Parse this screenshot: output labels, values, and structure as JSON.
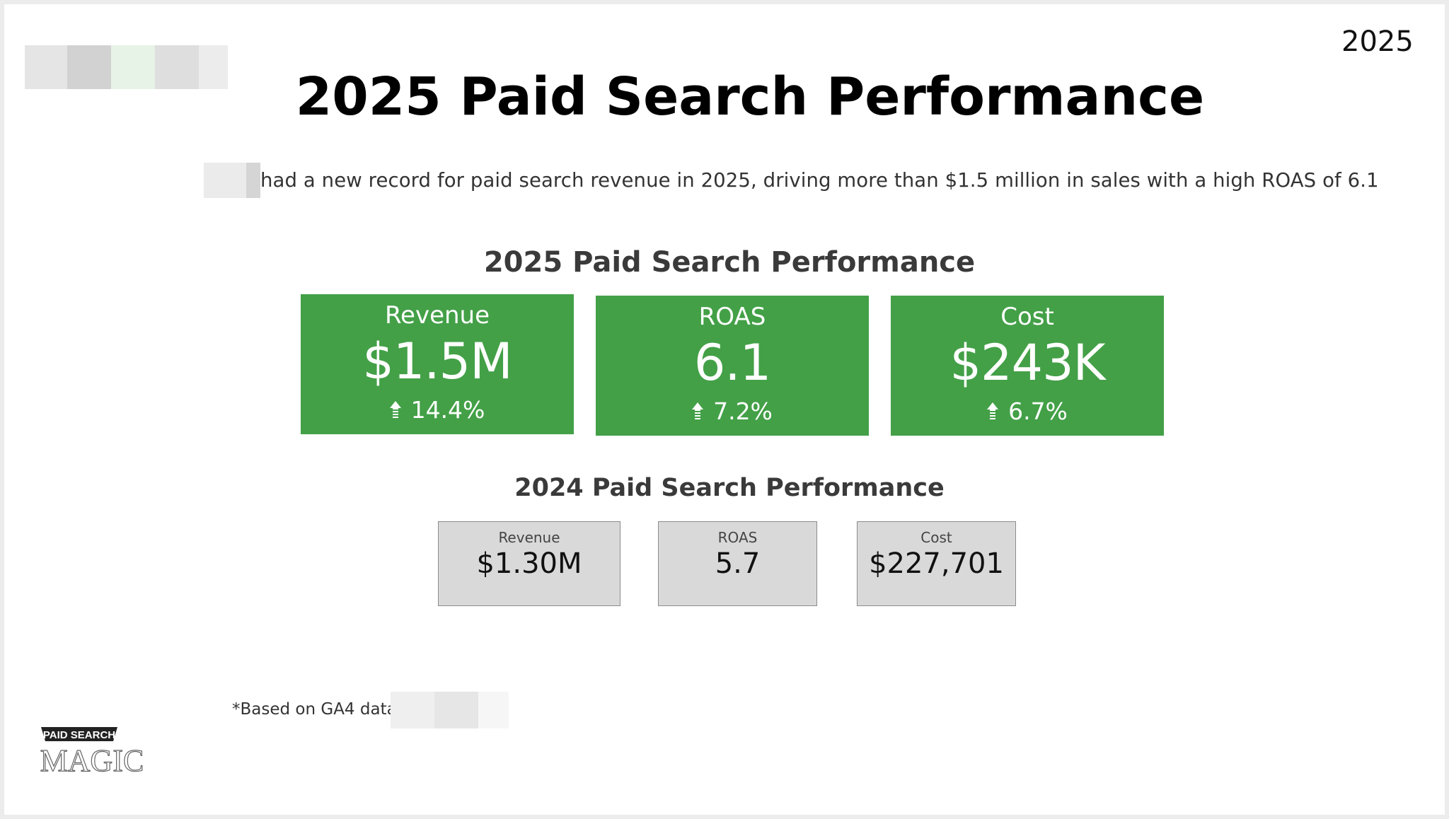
{
  "year_tag": "2025",
  "title": "2025 Paid Search Performance",
  "subtitle": "had a new record for paid search revenue in 2025, driving more than $1.5 million in sales with a high ROAS of 6.1",
  "section_2025": {
    "title": "2025 Paid Search Performance",
    "cards": [
      {
        "label": "Revenue",
        "value": "$1.5M",
        "change": "14.4%",
        "direction": "up-arrow-icon"
      },
      {
        "label": "ROAS",
        "value": "6.1",
        "change": "7.2%",
        "direction": "up-arrow-icon"
      },
      {
        "label": "Cost",
        "value": "$243K",
        "change": "6.7%",
        "direction": "up-arrow-icon"
      }
    ]
  },
  "section_2024": {
    "title": "2024 Paid Search Performance",
    "cards": [
      {
        "label": "Revenue",
        "value": "$1.30M"
      },
      {
        "label": "ROAS",
        "value": "5.7"
      },
      {
        "label": "Cost",
        "value": "$227,701"
      }
    ]
  },
  "footnote": "*Based on GA4 data.",
  "brand": {
    "line1": "PAID SEARCH",
    "line2": "MAGIC"
  },
  "colors": {
    "card_green": "#43a047",
    "card_gray": "#d9d9d9",
    "card_gray_border": "#8c8c8c",
    "title_text": "#000000",
    "section_text": "#3a3a3a"
  }
}
